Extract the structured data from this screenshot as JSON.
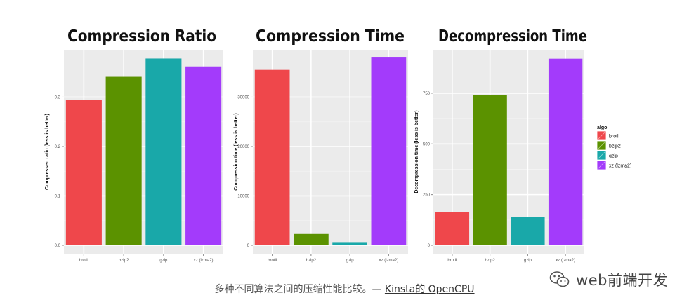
{
  "chart_data": [
    {
      "type": "bar",
      "title": "Compression Ratio",
      "ylabel": "Compressed ratio (less is better)",
      "categories": [
        "brotli",
        "bzip2",
        "gzip",
        "xz (lzma2)"
      ],
      "values": [
        0.294,
        0.341,
        0.378,
        0.362
      ],
      "ylim": [
        0,
        0.39
      ],
      "yticks": [
        0,
        0.1,
        0.2,
        0.3
      ],
      "ytick_labels": [
        "0.0",
        "0.1",
        "0.2",
        "0.3"
      ]
    },
    {
      "type": "bar",
      "title": "Compression Time",
      "ylabel": "Compression time (less is better)",
      "categories": [
        "brotli",
        "bzip2",
        "gzip",
        "xz (lzma2)"
      ],
      "values": [
        35500,
        2300,
        650,
        38000
      ],
      "ylim": [
        0,
        39000
      ],
      "yticks": [
        0,
        10000,
        20000,
        30000
      ],
      "ytick_labels": [
        "0",
        "10000",
        "20000",
        "30000"
      ]
    },
    {
      "type": "bar",
      "title": "Decompression Time",
      "ylabel": "Decompression time (less is better)",
      "categories": [
        "brotli",
        "bzip2",
        "gzip",
        "xz (lzma2)"
      ],
      "values": [
        165,
        740,
        140,
        920
      ],
      "ylim": [
        0,
        950
      ],
      "yticks": [
        0,
        250,
        500,
        750
      ],
      "ytick_labels": [
        "0",
        "250",
        "500",
        "750"
      ]
    }
  ],
  "legend": {
    "title": "algo",
    "placement": "right",
    "items": [
      {
        "label": "brotli",
        "color": "#EF474B"
      },
      {
        "label": "bzip2",
        "color": "#5B9200"
      },
      {
        "label": "gzip",
        "color": "#19A8A9"
      },
      {
        "label": "xz (lzma2)",
        "color": "#A33BFB"
      }
    ]
  },
  "style": {
    "panel_background": "#EBEBEB",
    "grid_color": "#FFFFFF",
    "grid": true
  },
  "caption": {
    "text": "多种不同算法之间的压缩性能比较。— ",
    "link_text": "Kinsta的 OpenCPU"
  },
  "watermark": {
    "text": "web前端开发",
    "icon": "wechat-icon"
  }
}
